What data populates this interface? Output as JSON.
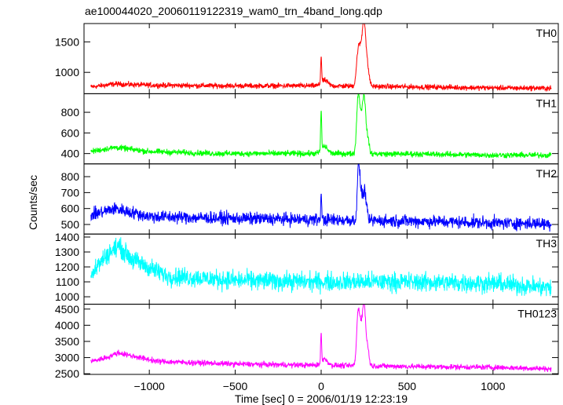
{
  "chart_data": {
    "type": "line",
    "title": "ae100044020_20060119122319_wam0_trn_4band_long.qdp",
    "xlabel": "Time [sec] 0 = 2006/01/19 12:23:19",
    "ylabel": "Counts/sec",
    "xlim": [
      -1380,
      1380
    ],
    "xticks": [
      -1000,
      -500,
      0,
      500,
      1000
    ],
    "xtick_labels": [
      "−1000",
      "−500",
      "0",
      "500",
      "1000"
    ],
    "grid": false,
    "panels": [
      {
        "name": "TH0",
        "color": "#ff0000",
        "ylim": [
          650,
          1800
        ],
        "yticks": [
          1000,
          1500
        ],
        "ytick_labels": [
          "1000",
          "1500"
        ],
        "x_range": [
          -1340,
          1340
        ],
        "noise": 30,
        "keypoints": [
          [
            -1340,
            760
          ],
          [
            -1200,
            810
          ],
          [
            -1000,
            790
          ],
          [
            -600,
            780
          ],
          [
            0,
            780
          ],
          [
            600,
            760
          ],
          [
            1000,
            745
          ],
          [
            1340,
            740
          ]
        ],
        "features": [
          {
            "x": 0,
            "y": 1250,
            "width": 4
          },
          {
            "x": 20,
            "y": 870,
            "width": 25
          },
          {
            "x": 215,
            "y": 1300,
            "width": 14
          },
          {
            "x": 232,
            "y": 1200,
            "width": 14
          },
          {
            "x": 250,
            "y": 1750,
            "width": 14
          },
          {
            "x": 270,
            "y": 1050,
            "width": 14
          }
        ]
      },
      {
        "name": "TH1",
        "color": "#00ff00",
        "ylim": [
          300,
          980
        ],
        "yticks": [
          400,
          600,
          800
        ],
        "ytick_labels": [
          "400",
          "600",
          "800"
        ],
        "x_range": [
          -1340,
          1340
        ],
        "noise": 20,
        "keypoints": [
          [
            -1340,
            420
          ],
          [
            -1200,
            460
          ],
          [
            -1000,
            420
          ],
          [
            -600,
            400
          ],
          [
            0,
            400
          ],
          [
            600,
            395
          ],
          [
            1000,
            385
          ],
          [
            1340,
            385
          ]
        ],
        "features": [
          {
            "x": 0,
            "y": 810,
            "width": 4
          },
          {
            "x": 20,
            "y": 470,
            "width": 25
          },
          {
            "x": 215,
            "y": 940,
            "width": 12
          },
          {
            "x": 232,
            "y": 700,
            "width": 12
          },
          {
            "x": 250,
            "y": 940,
            "width": 12
          },
          {
            "x": 270,
            "y": 560,
            "width": 12
          }
        ]
      },
      {
        "name": "TH2",
        "color": "#0000ff",
        "ylim": [
          440,
          880
        ],
        "yticks": [
          500,
          600,
          700,
          800
        ],
        "ytick_labels": [
          "500",
          "600",
          "700",
          "800"
        ],
        "x_range": [
          -1340,
          1340
        ],
        "noise": 28,
        "keypoints": [
          [
            -1340,
            560
          ],
          [
            -1200,
            600
          ],
          [
            -1000,
            550
          ],
          [
            -600,
            540
          ],
          [
            0,
            530
          ],
          [
            600,
            520
          ],
          [
            1000,
            510
          ],
          [
            1340,
            505
          ]
        ],
        "features": [
          {
            "x": 0,
            "y": 690,
            "width": 4
          },
          {
            "x": 218,
            "y": 870,
            "width": 10
          },
          {
            "x": 235,
            "y": 680,
            "width": 12
          },
          {
            "x": 255,
            "y": 700,
            "width": 12
          }
        ]
      },
      {
        "name": "TH3",
        "color": "#00ffff",
        "ylim": [
          950,
          1420
        ],
        "yticks": [
          1000,
          1100,
          1200,
          1300,
          1400
        ],
        "ytick_labels": [
          "1000",
          "1100",
          "1200",
          "1300",
          "1400"
        ],
        "x_range": [
          -1340,
          1340
        ],
        "noise": 45,
        "keypoints": [
          [
            -1340,
            1150
          ],
          [
            -1250,
            1280
          ],
          [
            -1180,
            1340
          ],
          [
            -1100,
            1250
          ],
          [
            -900,
            1140
          ],
          [
            -500,
            1110
          ],
          [
            0,
            1100
          ],
          [
            500,
            1100
          ],
          [
            1000,
            1090
          ],
          [
            1340,
            1060
          ]
        ],
        "features": []
      },
      {
        "name": "TH0123",
        "color": "#ff00ff",
        "ylim": [
          2480,
          4650
        ],
        "yticks": [
          2500,
          3000,
          3500,
          4000,
          4500
        ],
        "ytick_labels": [
          "2500",
          "3000",
          "3500",
          "4000",
          "4500"
        ],
        "x_range": [
          -1340,
          1340
        ],
        "noise": 60,
        "keypoints": [
          [
            -1340,
            2880
          ],
          [
            -1250,
            3000
          ],
          [
            -1180,
            3150
          ],
          [
            -1100,
            3050
          ],
          [
            -950,
            2880
          ],
          [
            -500,
            2800
          ],
          [
            0,
            2760
          ],
          [
            600,
            2720
          ],
          [
            1000,
            2700
          ],
          [
            1340,
            2650
          ]
        ],
        "features": [
          {
            "x": 0,
            "y": 3750,
            "width": 4
          },
          {
            "x": 20,
            "y": 2950,
            "width": 25
          },
          {
            "x": 215,
            "y": 4350,
            "width": 12
          },
          {
            "x": 232,
            "y": 3800,
            "width": 12
          },
          {
            "x": 250,
            "y": 4600,
            "width": 12
          },
          {
            "x": 270,
            "y": 3300,
            "width": 12
          }
        ]
      }
    ]
  }
}
